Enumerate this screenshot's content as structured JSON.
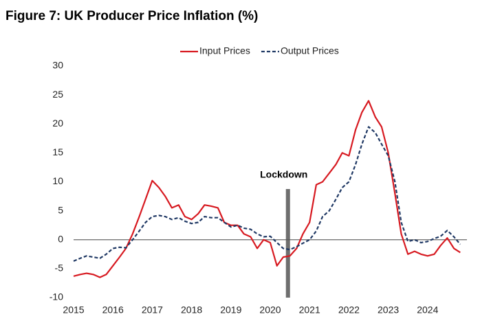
{
  "chart_data": {
    "type": "line",
    "title": "Figure 7: UK Producer Price Inflation (%)",
    "x": [
      2015,
      2015.17,
      2015.33,
      2015.5,
      2015.67,
      2015.83,
      2016,
      2016.17,
      2016.33,
      2016.5,
      2016.67,
      2016.83,
      2017,
      2017.17,
      2017.33,
      2017.5,
      2017.67,
      2017.83,
      2018,
      2018.17,
      2018.33,
      2018.5,
      2018.67,
      2018.83,
      2019,
      2019.17,
      2019.33,
      2019.5,
      2019.67,
      2019.83,
      2020,
      2020.17,
      2020.33,
      2020.5,
      2020.67,
      2020.83,
      2021,
      2021.17,
      2021.33,
      2021.5,
      2021.67,
      2021.83,
      2022,
      2022.17,
      2022.33,
      2022.5,
      2022.67,
      2022.83,
      2023,
      2023.17,
      2023.33,
      2023.5,
      2023.67,
      2023.83,
      2024,
      2024.17,
      2024.33,
      2024.5,
      2024.67,
      2024.83
    ],
    "series": [
      {
        "name": "Input Prices",
        "color": "#d71920",
        "dash": "solid",
        "values": [
          -6.3,
          -6.0,
          -5.8,
          -6.0,
          -6.5,
          -6.0,
          -4.5,
          -3.0,
          -1.5,
          1.0,
          4.0,
          7.0,
          10.2,
          9.0,
          7.5,
          5.5,
          6.0,
          4.0,
          3.5,
          4.5,
          6.0,
          5.8,
          5.5,
          3.0,
          2.5,
          2.5,
          1.0,
          0.5,
          -1.5,
          0.0,
          -0.5,
          -4.5,
          -3.0,
          -2.8,
          -1.5,
          1.0,
          3.0,
          9.5,
          10.0,
          11.5,
          13.0,
          15.0,
          14.5,
          19.0,
          22.0,
          24.0,
          21.2,
          19.5,
          15.0,
          8.0,
          1.0,
          -2.5,
          -2.0,
          -2.5,
          -2.8,
          -2.5,
          -1.0,
          0.3,
          -1.5,
          -2.2
        ]
      },
      {
        "name": "Output Prices",
        "color": "#1f3864",
        "dash": "dashed",
        "values": [
          -3.7,
          -3.2,
          -2.8,
          -3.0,
          -3.2,
          -2.5,
          -1.5,
          -1.3,
          -1.4,
          0.0,
          1.5,
          3.0,
          4.0,
          4.2,
          4.0,
          3.5,
          3.8,
          3.2,
          2.8,
          3.0,
          4.0,
          3.8,
          3.8,
          3.0,
          2.2,
          2.5,
          2.0,
          1.8,
          1.0,
          0.5,
          0.6,
          -0.5,
          -1.5,
          -1.7,
          -1.2,
          -0.6,
          0.0,
          1.5,
          4.0,
          5.0,
          7.0,
          9.0,
          10.0,
          13.0,
          16.5,
          19.5,
          18.5,
          16.5,
          14.5,
          10.0,
          3.0,
          -0.3,
          0.0,
          -0.5,
          -0.3,
          0.2,
          0.6,
          1.6,
          0.5,
          -0.8
        ]
      }
    ],
    "xlim": [
      2015,
      2025
    ],
    "xticks": [
      2015,
      2016,
      2017,
      2018,
      2019,
      2020,
      2021,
      2022,
      2023,
      2024
    ],
    "ylim": [
      -10,
      30
    ],
    "yticks": [
      -10,
      -5,
      0,
      5,
      10,
      15,
      20,
      25,
      30
    ],
    "annotations": [
      {
        "text": "Lockdown",
        "x": 2020.45
      }
    ],
    "legend": "top",
    "grid": false
  }
}
